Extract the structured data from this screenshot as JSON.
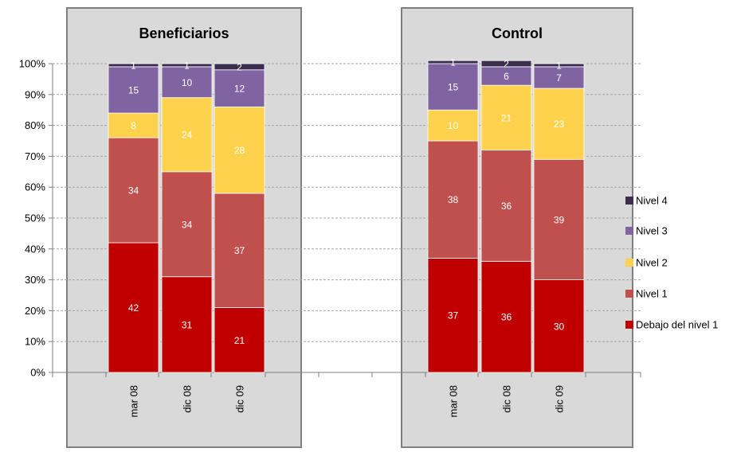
{
  "chart_data": {
    "type": "bar",
    "stacked": true,
    "percent": true,
    "ylim": [
      0,
      100
    ],
    "yticks": [
      "0%",
      "10%",
      "20%",
      "30%",
      "40%",
      "50%",
      "60%",
      "70%",
      "80%",
      "90%",
      "100%"
    ],
    "grid": true,
    "legend_position": "right",
    "legend": [
      "Nivel 4",
      "Nivel 3",
      "Nivel 2",
      "Nivel 1",
      "Debajo del nivel 1"
    ],
    "series_colors": {
      "Debajo del nivel 1": "#C00000",
      "Nivel 1": "#C0504D",
      "Nivel 2": "#FFD24D",
      "Nivel 3": "#8064A2",
      "Nivel 4": "#3B2E4F"
    },
    "panel_background": "#D9D9D9",
    "groups": [
      {
        "title": "Beneficiarios",
        "categories": [
          "mar 08",
          "dic 08",
          "dic 09"
        ],
        "series": [
          {
            "name": "Debajo del nivel 1",
            "values": [
              42,
              31,
              21
            ]
          },
          {
            "name": "Nivel 1",
            "values": [
              34,
              34,
              37
            ]
          },
          {
            "name": "Nivel 2",
            "values": [
              8,
              24,
              28
            ]
          },
          {
            "name": "Nivel 3",
            "values": [
              15,
              10,
              12
            ]
          },
          {
            "name": "Nivel 4",
            "values": [
              1,
              1,
              2
            ]
          }
        ]
      },
      {
        "title": "Control",
        "categories": [
          "mar 08",
          "dic 08",
          "dic 09"
        ],
        "series": [
          {
            "name": "Debajo del nivel 1",
            "values": [
              37,
              36,
              30
            ]
          },
          {
            "name": "Nivel 1",
            "values": [
              38,
              36,
              39
            ]
          },
          {
            "name": "Nivel 2",
            "values": [
              10,
              21,
              23
            ]
          },
          {
            "name": "Nivel 3",
            "values": [
              15,
              6,
              7
            ]
          },
          {
            "name": "Nivel 4",
            "values": [
              1,
              2,
              1
            ]
          }
        ]
      }
    ]
  }
}
